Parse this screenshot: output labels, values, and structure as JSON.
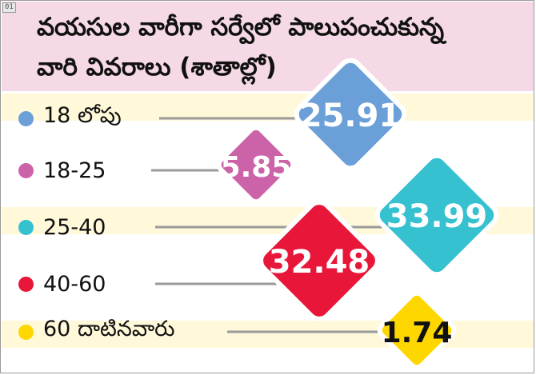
{
  "badge": "01",
  "title": {
    "line1": "వయసుల వారీగా సర్వేలో పాలుపంచుకున్న",
    "line2": "వారి వివరాలు (శాతాల్లో)"
  },
  "chart_data": {
    "type": "pictorial",
    "categories": [
      "18 లోపు",
      "18-25",
      "25-40",
      "40-60",
      "60 దాటినవారు"
    ],
    "values": [
      25.91,
      5.85,
      33.99,
      32.48,
      1.74
    ],
    "value_labels": [
      "25.91",
      "5.85",
      "33.99",
      "32.48",
      "1.74"
    ],
    "unit": "percent",
    "colors": [
      "#6b9fd8",
      "#cc63a9",
      "#35c1cf",
      "#e8173a",
      "#ffd700"
    ],
    "label_colors": [
      "#ffffff",
      "#ffffff",
      "#ffffff",
      "#ffffff",
      "#111111"
    ],
    "legend_placement": "left"
  }
}
